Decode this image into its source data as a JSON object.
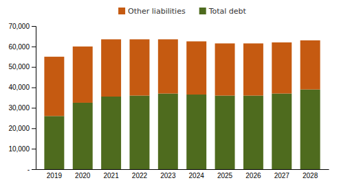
{
  "chart_data": {
    "type": "bar",
    "stacked": true,
    "categories": [
      "2019",
      "2020",
      "2021",
      "2022",
      "2023",
      "2024",
      "2025",
      "2026",
      "2027",
      "2028"
    ],
    "series": [
      {
        "name": "Total debt",
        "color": "#4e6b1e",
        "values": [
          26000,
          32500,
          35500,
          36000,
          37000,
          36500,
          36000,
          36000,
          37000,
          39000
        ]
      },
      {
        "name": "Other liabilities",
        "color": "#c55a11",
        "values": [
          29000,
          27500,
          28000,
          27500,
          26500,
          26000,
          25500,
          25500,
          25000,
          24000
        ]
      }
    ],
    "ylim": [
      0,
      70000
    ],
    "yticks": [
      {
        "value": 0,
        "label": "-"
      },
      {
        "value": 10000,
        "label": "10,000"
      },
      {
        "value": 20000,
        "label": "20,000"
      },
      {
        "value": 30000,
        "label": "30,000"
      },
      {
        "value": 40000,
        "label": "40,000"
      },
      {
        "value": 50000,
        "label": "50,000"
      },
      {
        "value": 60000,
        "label": "60,000"
      },
      {
        "value": 70000,
        "label": "70,000"
      }
    ],
    "grid": false,
    "legend": "top"
  }
}
